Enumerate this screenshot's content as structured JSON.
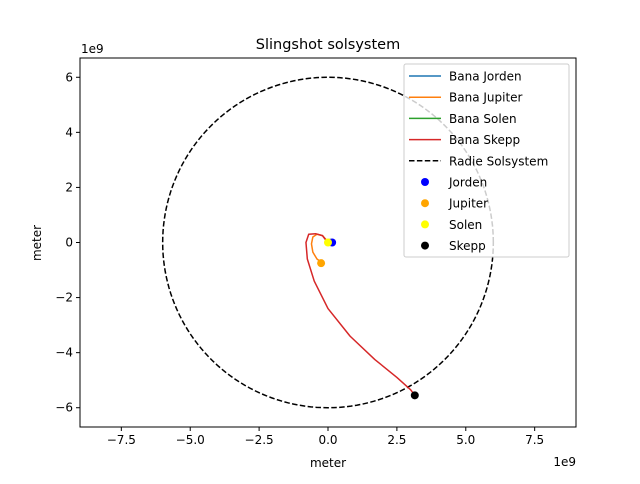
{
  "chart_data": {
    "type": "line",
    "title": "Slingshot solsystem",
    "xlabel": "meter",
    "ylabel": "meter",
    "x_offset_label": "1e9",
    "y_offset_label": "1e9",
    "xlim": [
      -9.0,
      9.0
    ],
    "ylim": [
      -6.7,
      6.7
    ],
    "x_unit_scale": "1e9",
    "xticks": [
      -7.5,
      -5.0,
      -2.5,
      0.0,
      2.5,
      5.0,
      7.5
    ],
    "xtick_labels": [
      "−7.5",
      "−5.0",
      "−2.5",
      "0.0",
      "2.5",
      "5.0",
      "7.5"
    ],
    "yticks": [
      -6,
      -4,
      -2,
      0,
      2,
      4,
      6
    ],
    "ytick_labels": [
      "−6",
      "−4",
      "−2",
      "0",
      "2",
      "4",
      "6"
    ],
    "grid": false,
    "legend_position": "top-right",
    "series": [
      {
        "name": "Bana Jorden",
        "style": "line",
        "color": "#1f77b4",
        "x": [
          0.15,
          0.13,
          0.08,
          0.02,
          -0.02
        ],
        "y": [
          0.0,
          0.07,
          0.11,
          0.1,
          0.05
        ]
      },
      {
        "name": "Bana Jupiter",
        "style": "line",
        "color": "#ff7f0e",
        "x": [
          -0.2,
          -0.4,
          -0.55,
          -0.6,
          -0.55,
          -0.4,
          -0.2,
          -0.05
        ],
        "y": [
          -0.75,
          -0.6,
          -0.35,
          -0.05,
          0.2,
          0.3,
          0.25,
          0.08
        ]
      },
      {
        "name": "Bana Solen",
        "style": "line",
        "color": "#2ca02c",
        "x": [
          -0.03,
          0.0,
          0.03
        ],
        "y": [
          0.0,
          0.02,
          0.0
        ]
      },
      {
        "name": "Bana Skepp",
        "style": "line",
        "color": "#d62728",
        "x": [
          -0.05,
          -0.2,
          -0.45,
          -0.7,
          -0.8,
          -0.75,
          -0.5,
          0.0,
          0.8,
          1.7,
          2.5,
          3.0,
          3.15
        ],
        "y": [
          0.05,
          0.25,
          0.32,
          0.3,
          0.0,
          -0.6,
          -1.4,
          -2.4,
          -3.4,
          -4.25,
          -4.9,
          -5.35,
          -5.55
        ]
      },
      {
        "name": "Radie Solsystem",
        "style": "dashed-circle",
        "color": "#000000",
        "radius": 6.0
      },
      {
        "name": "Jorden",
        "style": "point",
        "color": "#0000ff",
        "x": [
          0.15
        ],
        "y": [
          0.0
        ]
      },
      {
        "name": "Jupiter",
        "style": "point",
        "color": "#ffa500",
        "x": [
          -0.25
        ],
        "y": [
          -0.75
        ]
      },
      {
        "name": "Solen",
        "style": "point",
        "color": "#ffff00",
        "x": [
          0.0
        ],
        "y": [
          0.0
        ]
      },
      {
        "name": "Skepp",
        "style": "point",
        "color": "#000000",
        "x": [
          3.15
        ],
        "y": [
          -5.55
        ]
      }
    ]
  }
}
